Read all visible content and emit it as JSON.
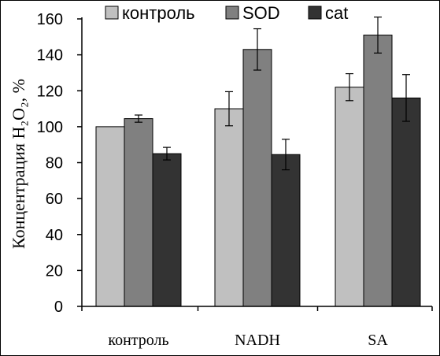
{
  "chart_data": {
    "type": "bar",
    "categories": [
      "контроль",
      "NADH",
      "SA"
    ],
    "series": [
      {
        "name": "контроль",
        "color": "#c0c0c0",
        "values": [
          100,
          110,
          122
        ],
        "errors": [
          0,
          9.5,
          7.5
        ]
      },
      {
        "name": "SOD",
        "color": "#808080",
        "values": [
          104.5,
          143,
          151
        ],
        "errors": [
          2,
          11.5,
          10
        ]
      },
      {
        "name": "cat",
        "color": "#333333",
        "values": [
          85,
          84.5,
          116
        ],
        "errors": [
          3.5,
          8.5,
          13
        ]
      }
    ],
    "ylabel": "Концентрация H₂O₂, %",
    "xlabel": "",
    "ylim": [
      0,
      160
    ],
    "yticks": [
      "0",
      "20",
      "40",
      "60",
      "80",
      "100",
      "120",
      "140",
      "160"
    ],
    "grid": false,
    "legend_position": "top"
  }
}
